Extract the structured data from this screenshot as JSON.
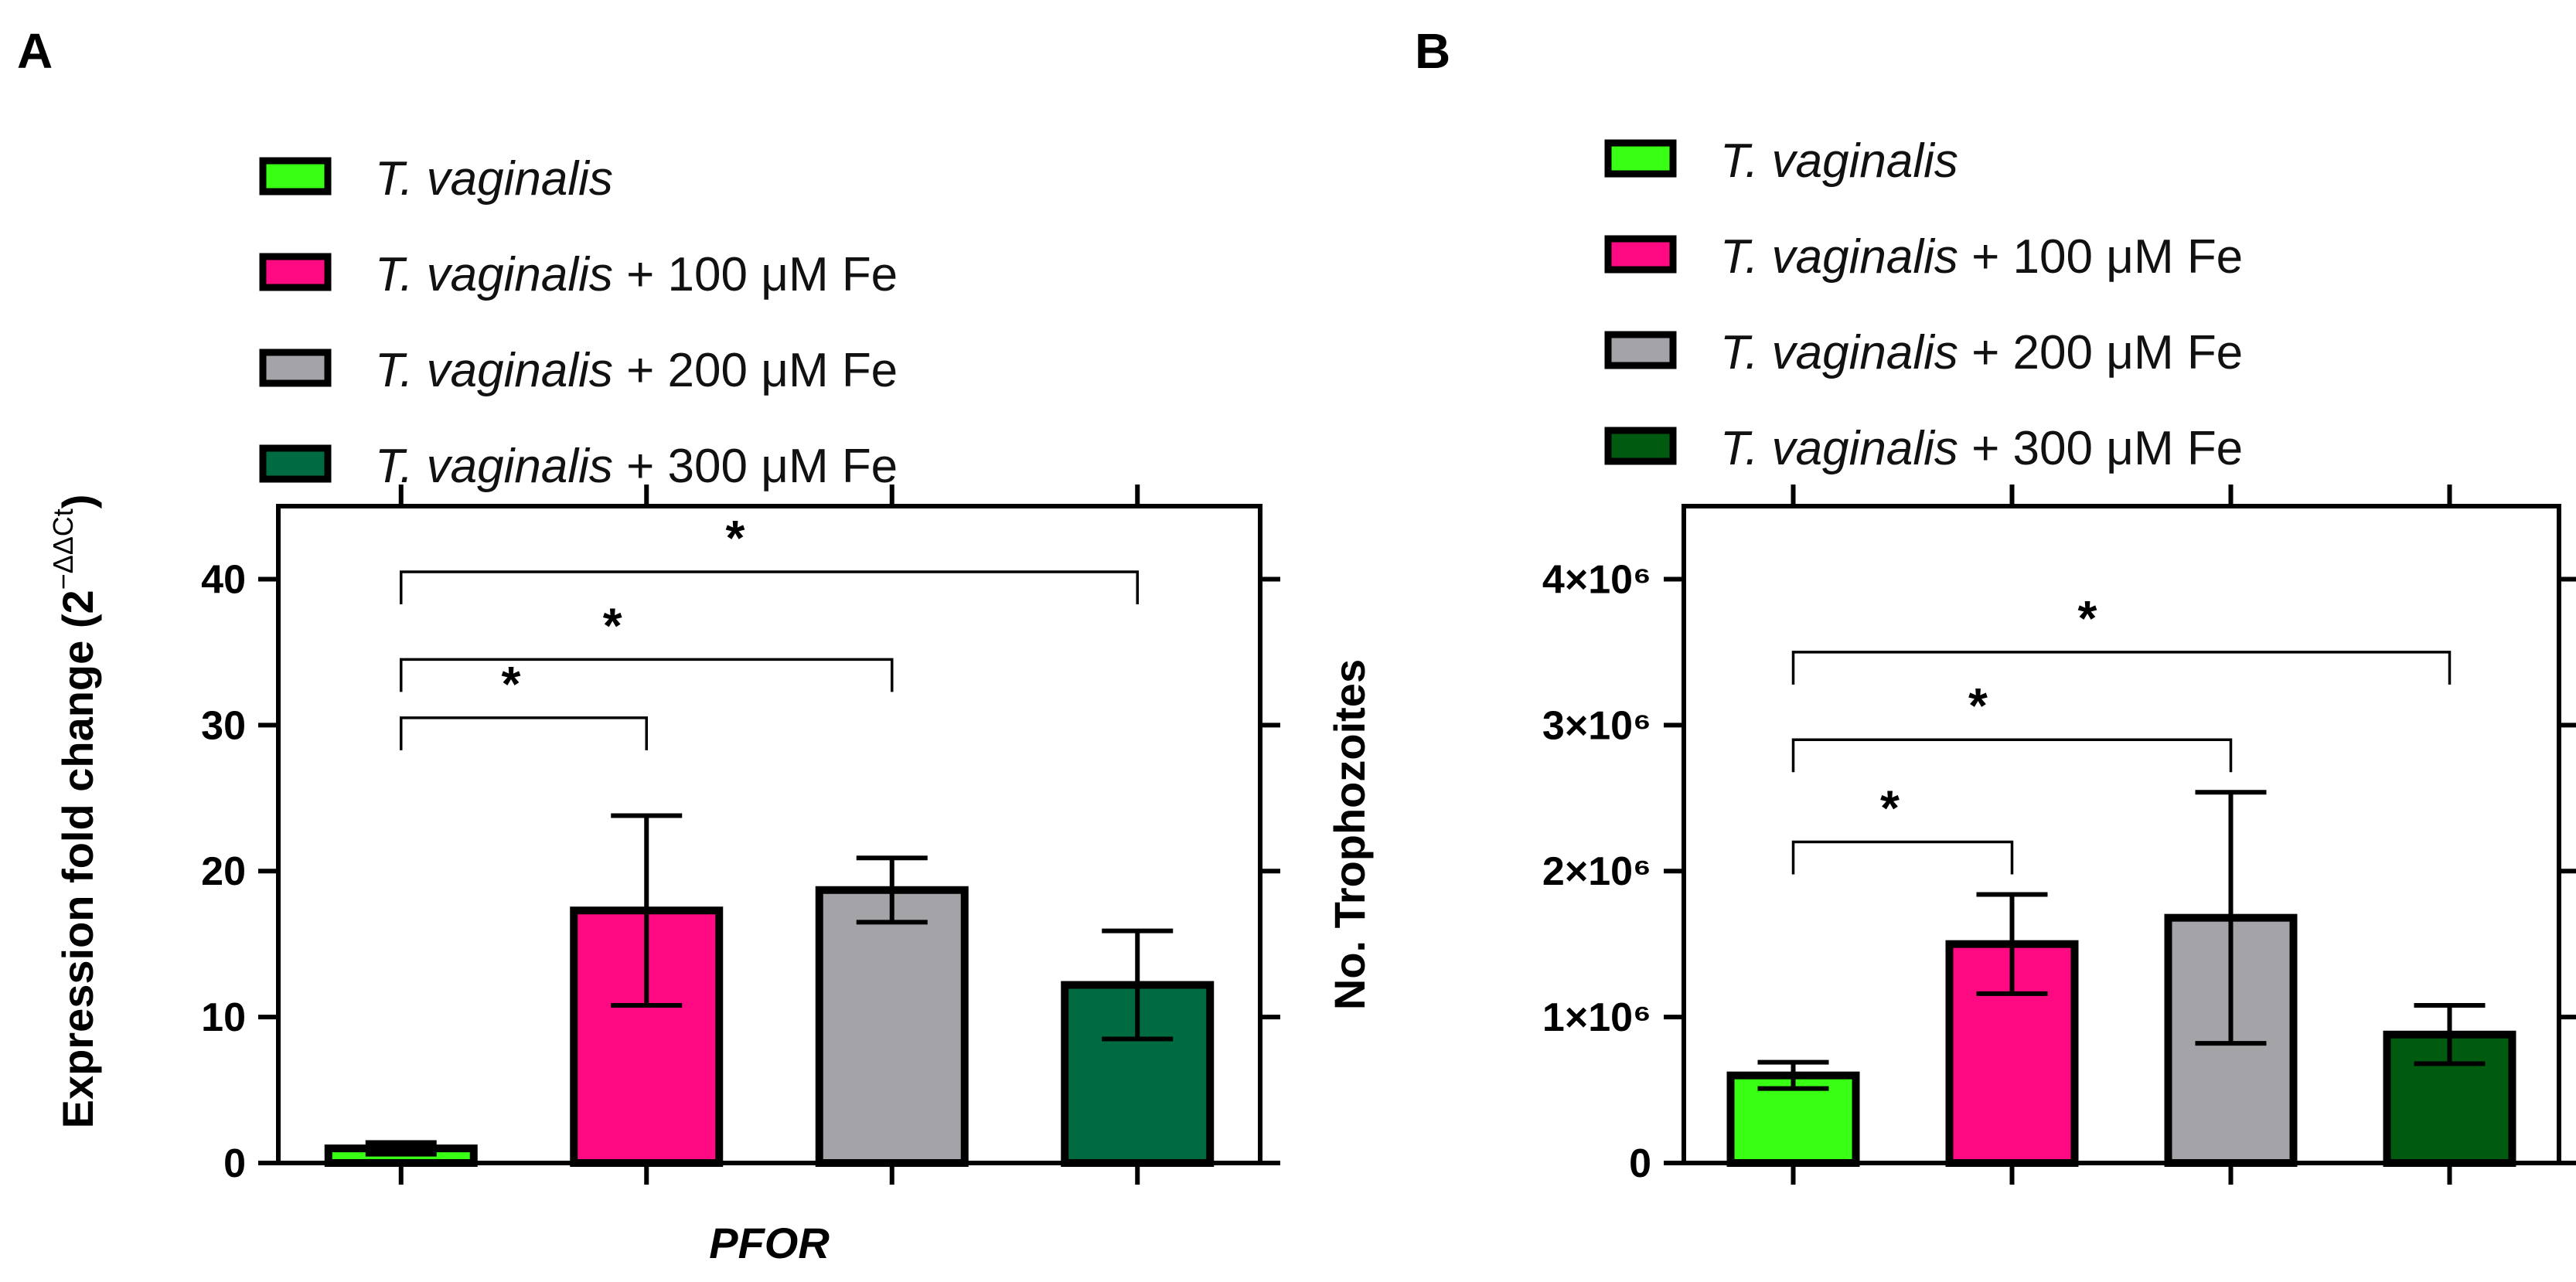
{
  "figure": {
    "panel_a_label": "A",
    "panel_b_label": "B"
  },
  "chart_data": [
    {
      "id": "A",
      "type": "bar",
      "title": "",
      "xlabel": "PFOR",
      "ylabel": "Expression fold change (2",
      "ylabel_superscript": "−ΔΔCt",
      "ylabel_close": ")",
      "ylim": [
        0,
        45
      ],
      "yticks": [
        0,
        10,
        20,
        30,
        40
      ],
      "ytick_labels": [
        "0",
        "10",
        "20",
        "30",
        "40"
      ],
      "grid": false,
      "legend_position": "top-left",
      "categories": [
        "T. vaginalis",
        "T. vaginalis + 100 μM Fe",
        "T. vaginalis + 200 μM Fe",
        "T. vaginalis + 300 μM Fe"
      ],
      "legend": [
        {
          "italic": "T. vaginalis",
          "suffix": ""
        },
        {
          "italic": "T. vaginalis",
          "suffix": " + 100 μM Fe"
        },
        {
          "italic": "T. vaginalis",
          "suffix": " + 200 μM Fe"
        },
        {
          "italic": "T. vaginalis",
          "suffix": " + 300 μM Fe"
        }
      ],
      "colors": [
        "#39ff14",
        "#ff0a82",
        "#a4a3a8",
        "#006a40"
      ],
      "values": [
        1.0,
        17.3,
        18.7,
        12.2
      ],
      "errors": [
        0.4,
        6.5,
        2.2,
        3.7
      ],
      "significance": [
        {
          "from": 0,
          "to": 1,
          "y": 30.5,
          "label": "*"
        },
        {
          "from": 0,
          "to": 2,
          "y": 34.5,
          "label": "*"
        },
        {
          "from": 0,
          "to": 3,
          "y": 40.5,
          "label": "*"
        }
      ]
    },
    {
      "id": "B",
      "type": "bar",
      "title": "",
      "xlabel": "",
      "ylabel": "No. Trophozoites",
      "ylim": [
        0,
        4500000
      ],
      "yticks": [
        0,
        1000000,
        2000000,
        3000000,
        4000000
      ],
      "ytick_labels": [
        "0",
        "1×10⁶",
        "2×10⁶",
        "3×10⁶",
        "4×10⁶"
      ],
      "grid": false,
      "legend_position": "top-left",
      "categories": [
        "T. vaginalis",
        "T. vaginalis + 100 μM Fe",
        "T. vaginalis + 200 μM Fe",
        "T. vaginalis + 300 μM Fe"
      ],
      "legend": [
        {
          "italic": "T. vaginalis",
          "suffix": ""
        },
        {
          "italic": "T. vaginalis",
          "suffix": " + 100 μM Fe"
        },
        {
          "italic": "T. vaginalis",
          "suffix": " + 200 μM Fe"
        },
        {
          "italic": "T. vaginalis",
          "suffix": " + 300 μM Fe"
        }
      ],
      "colors": [
        "#39ff14",
        "#ff0a82",
        "#a4a3a8",
        "#005a10"
      ],
      "values": [
        600000,
        1500000,
        1680000,
        880000
      ],
      "errors": [
        90000,
        340000,
        860000,
        200000
      ],
      "significance": [
        {
          "from": 0,
          "to": 1,
          "y": 2200000,
          "label": "*"
        },
        {
          "from": 0,
          "to": 2,
          "y": 2900000,
          "label": "*"
        },
        {
          "from": 0,
          "to": 3,
          "y": 3500000,
          "label": "*"
        }
      ]
    }
  ]
}
